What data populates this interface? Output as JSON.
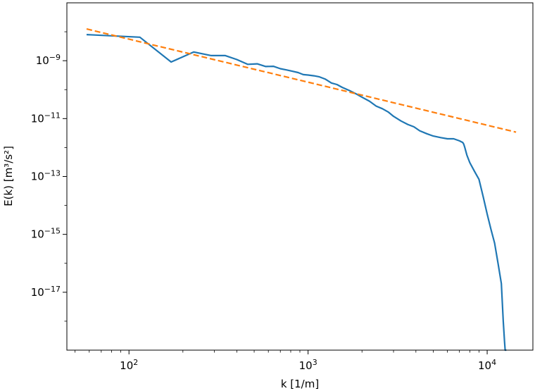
{
  "chart_data": {
    "type": "line",
    "title": "",
    "xlabel": "k [1/m]",
    "ylabel": "E(k) [m³/s²]",
    "xscale": "log",
    "yscale": "log",
    "xlim": [
      45,
      18000
    ],
    "ylim": [
      1e-19,
      1e-07
    ],
    "grid": false,
    "legend": "none",
    "x_ticks": [
      {
        "value": 100,
        "base": "10",
        "exp": "2"
      },
      {
        "value": 1000,
        "base": "10",
        "exp": "3"
      },
      {
        "value": 10000,
        "base": "10",
        "exp": "4"
      }
    ],
    "y_ticks": [
      {
        "value": 1e-09,
        "base": "10",
        "exp": "−9"
      },
      {
        "value": 1e-11,
        "base": "10",
        "exp": "−11"
      },
      {
        "value": 1e-13,
        "base": "10",
        "exp": "−13"
      },
      {
        "value": 1e-15,
        "base": "10",
        "exp": "−15"
      },
      {
        "value": 1e-17,
        "base": "10",
        "exp": "−17"
      }
    ],
    "series": [
      {
        "color": "#1f77b4",
        "style": "solid",
        "x": [
          58,
          115,
          172,
          230,
          288,
          345,
          400,
          460,
          520,
          580,
          640,
          700,
          760,
          820,
          880,
          940,
          1000,
          1080,
          1150,
          1250,
          1350,
          1450,
          1550,
          1700,
          1850,
          2000,
          2200,
          2400,
          2600,
          2800,
          3000,
          3300,
          3600,
          3900,
          4200,
          4600,
          5000,
          5500,
          6000,
          6500,
          7000,
          7300,
          7400,
          7500,
          7700,
          8000,
          8500,
          9000,
          9500,
          10000,
          10500,
          11000,
          11500,
          12000,
          12300,
          12500,
          12600,
          12650,
          12700,
          12750,
          12800
        ],
        "y": [
          8e-09,
          6.5e-09,
          9e-10,
          2e-09,
          1.5e-09,
          1.5e-09,
          1.1e-09,
          7.5e-10,
          7.8e-10,
          6.3e-10,
          6.4e-10,
          5.3e-10,
          4.8e-10,
          4.3e-10,
          3.9e-10,
          3.3e-10,
          3.2e-10,
          3e-10,
          2.8e-10,
          2.3e-10,
          1.7e-10,
          1.5e-10,
          1.2e-10,
          9.3e-11,
          7.2e-11,
          5.5e-11,
          4e-11,
          2.7e-11,
          2.2e-11,
          1.7e-11,
          1.2e-11,
          8.3e-12,
          6.3e-12,
          5.2e-12,
          3.8e-12,
          3e-12,
          2.5e-12,
          2.2e-12,
          2e-12,
          2e-12,
          1.7e-12,
          1.5e-12,
          1.3e-12,
          1e-12,
          5.5e-13,
          3e-13,
          1.5e-13,
          8e-14,
          2e-14,
          5e-15,
          1.5e-15,
          5e-16,
          1e-16,
          2e-17,
          1e-18,
          2e-19,
          1e-19,
          1e-19,
          1e-19,
          1e-19,
          1e-19
        ]
      },
      {
        "color": "#ff7f0e",
        "style": "dashed",
        "x": [
          58,
          14500
        ],
        "y": [
          1.25e-08,
          3.4e-12
        ]
      }
    ]
  }
}
